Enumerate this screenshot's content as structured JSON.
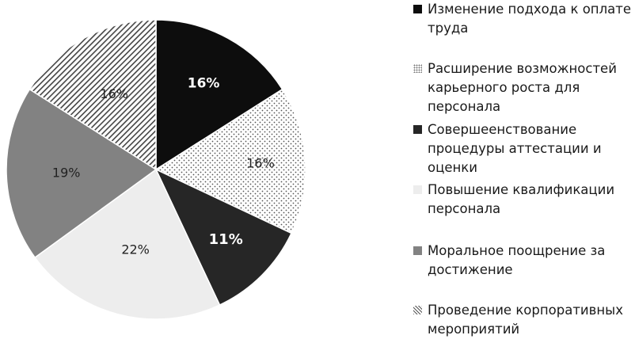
{
  "chart_data": {
    "type": "pie",
    "start_angle_deg": 0,
    "slices": [
      {
        "label": "Изменение подхода к оплате труда",
        "value": 16,
        "display": "16%",
        "fill": "solid-black",
        "label_bold": true
      },
      {
        "label": "Расширение возможностей карьерного роста для персонала",
        "value": 16,
        "display": "16%",
        "fill": "dots",
        "label_bold": false
      },
      {
        "label": "Совершеенствование процедуры аттестации и оценки",
        "value": 11,
        "display": "11%",
        "fill": "solid-dark",
        "label_bold": true
      },
      {
        "label": "Повышение квалификации персонала",
        "value": 22,
        "display": "22%",
        "fill": "light-gray",
        "label_bold": false
      },
      {
        "label": "Моральное поощрение за достижение",
        "value": 19,
        "display": "19%",
        "fill": "mid-gray",
        "label_bold": false
      },
      {
        "label": "Проведение корпоративных мероприятий",
        "value": 16,
        "display": "16%",
        "fill": "diagonal-hatch",
        "label_bold": false
      }
    ],
    "legend_position": "right",
    "colors": {
      "solid-black": "#0d0d0d",
      "solid-dark": "#262626",
      "light-gray": "#ededed",
      "mid-gray": "#828282",
      "dots": "#555555",
      "diagonal-hatch": "#444444",
      "slice_text_dark": "#222222",
      "slice_text_light": "#ffffff"
    }
  }
}
